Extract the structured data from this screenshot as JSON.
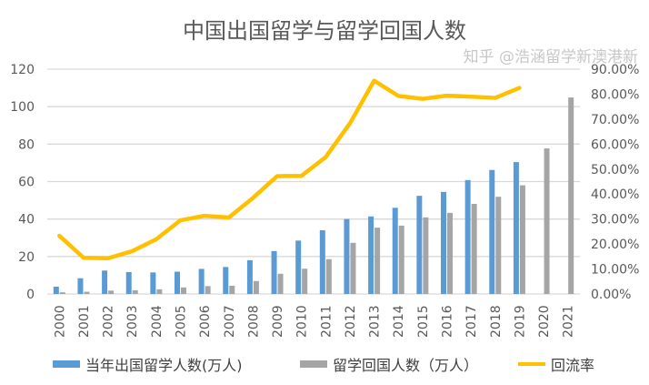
{
  "chart_data": {
    "type": "bar+line",
    "title": "中国出国留学与留学回国人数",
    "categories": [
      "2000",
      "2001",
      "2002",
      "2003",
      "2004",
      "2005",
      "2006",
      "2007",
      "2008",
      "2009",
      "2010",
      "2011",
      "2012",
      "2013",
      "2014",
      "2015",
      "2016",
      "2017",
      "2018",
      "2019",
      "2020",
      "2021"
    ],
    "series": [
      {
        "name": "当年出国留学人数(万人)",
        "type": "bar",
        "axis": "left",
        "color": "#5B9BD5",
        "values": [
          3.9,
          8.4,
          12.5,
          11.7,
          11.5,
          11.9,
          13.4,
          14.4,
          18.0,
          22.9,
          28.5,
          34.0,
          40.0,
          41.4,
          46.0,
          52.4,
          54.5,
          60.8,
          66.2,
          70.4,
          null,
          null
        ]
      },
      {
        "name": "留学回国人数（万人）",
        "type": "bar",
        "axis": "left",
        "color": "#A5A5A5",
        "values": [
          0.9,
          1.2,
          1.8,
          2.0,
          2.5,
          3.5,
          4.2,
          4.4,
          6.9,
          10.8,
          13.5,
          18.6,
          27.3,
          35.4,
          36.5,
          40.9,
          43.3,
          48.1,
          51.9,
          58.0,
          77.7,
          104.9
        ]
      },
      {
        "name": "回流率",
        "type": "line",
        "axis": "right",
        "color": "#FFC000",
        "values": [
          23.3,
          14.5,
          14.3,
          17.1,
          21.9,
          29.5,
          31.3,
          30.6,
          38.5,
          47.2,
          47.3,
          54.8,
          68.3,
          85.4,
          79.3,
          78.1,
          79.4,
          79.0,
          78.5,
          82.5,
          null,
          null
        ]
      }
    ],
    "y_left": {
      "range": [
        0,
        120
      ],
      "ticks": [
        "0",
        "20",
        "40",
        "60",
        "80",
        "100",
        "120"
      ]
    },
    "y_right": {
      "range": [
        0,
        90
      ],
      "ticks": [
        "0.00%",
        "10.00%",
        "20.00%",
        "30.00%",
        "40.00%",
        "50.00%",
        "60.00%",
        "70.00%",
        "80.00%",
        "90.00%"
      ]
    },
    "grid": true,
    "legend": "bottom"
  },
  "watermark": "知乎 @浩涵留学新澳港新"
}
